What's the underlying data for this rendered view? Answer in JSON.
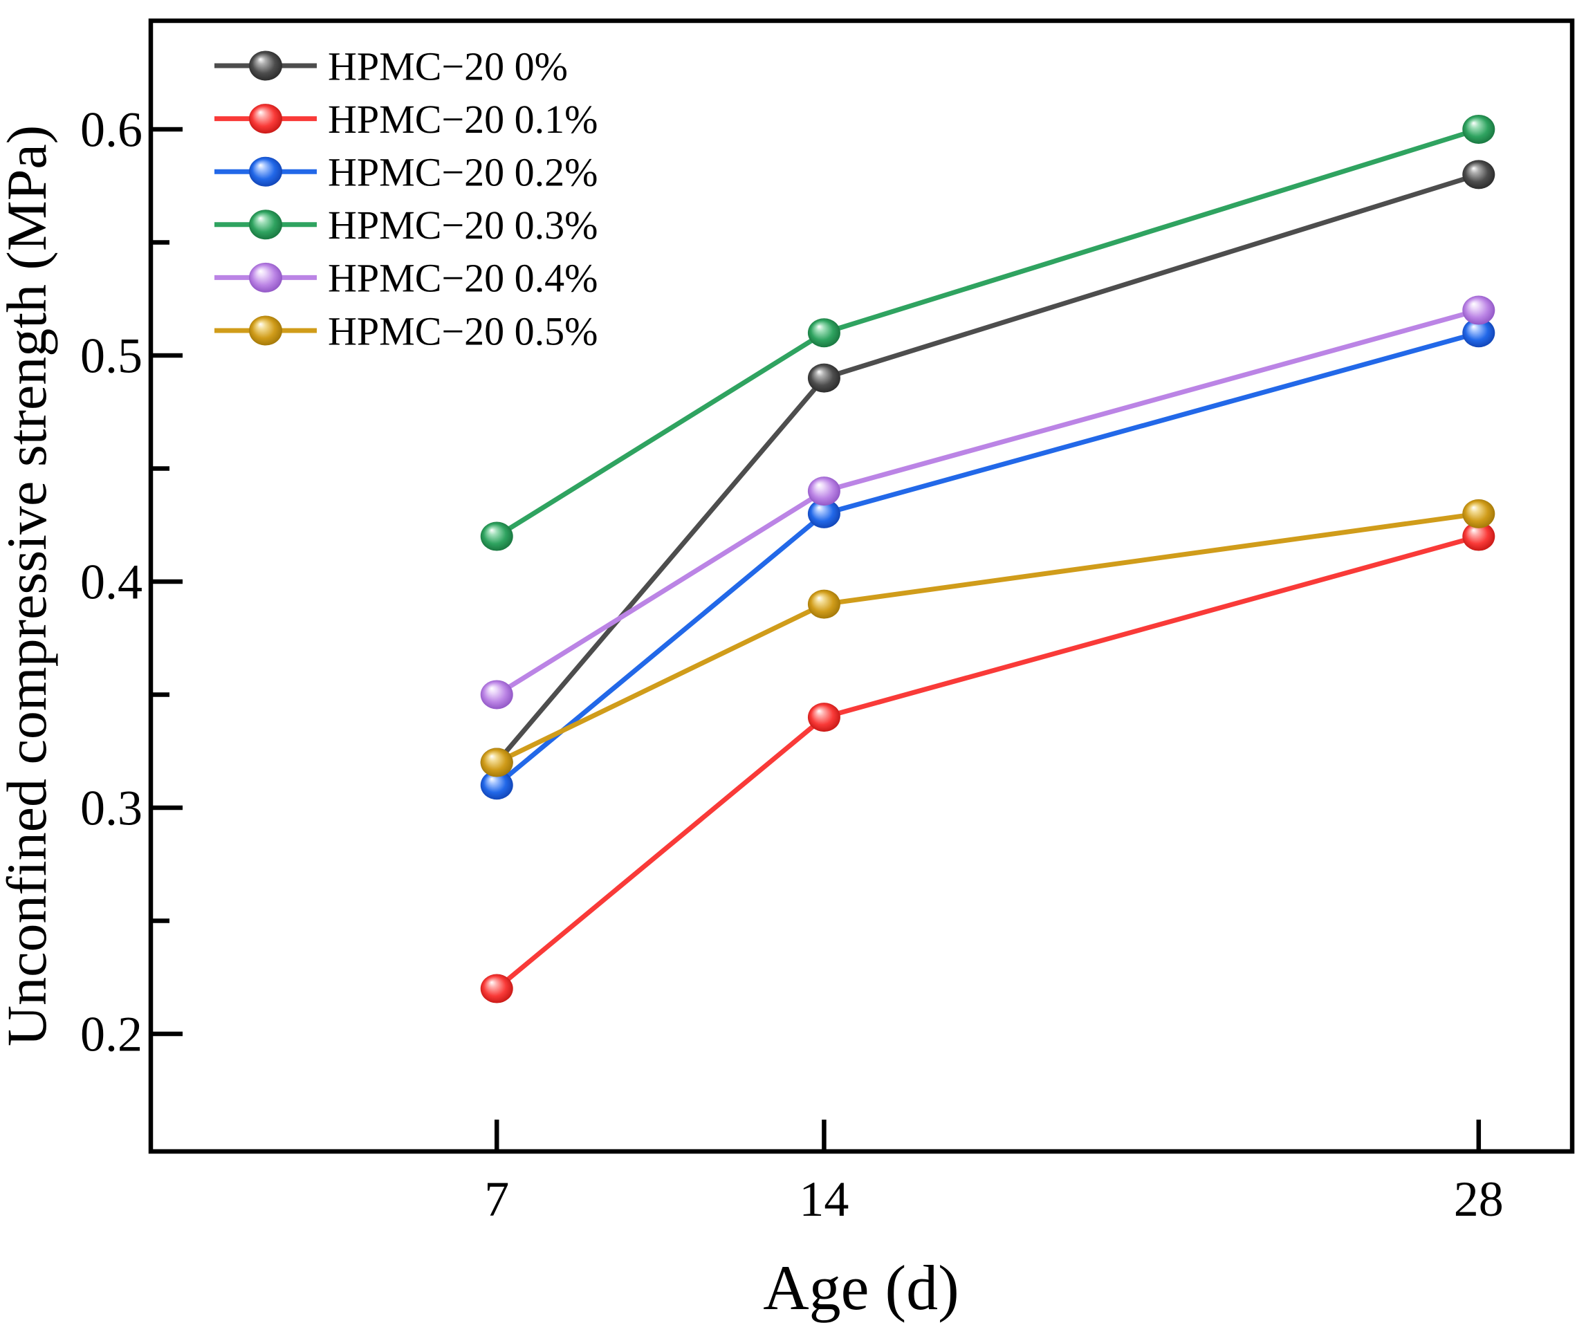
{
  "chart_data": {
    "type": "line",
    "title": "",
    "xlabel": "Age (d)",
    "ylabel": "Unconfined compressive strength (MPa)",
    "x": [
      7,
      14,
      28
    ],
    "x_tick_labels": [
      "7",
      "14",
      "28"
    ],
    "xlim": [
      -0.4,
      30
    ],
    "ylim": [
      0.148,
      0.648
    ],
    "y_major_ticks": [
      0.2,
      0.3,
      0.4,
      0.5,
      0.6
    ],
    "y_minor_ticks": [
      0.25,
      0.35,
      0.45,
      0.55
    ],
    "y_tick_labels": [
      "0.2",
      "0.3",
      "0.4",
      "0.5",
      "0.6"
    ],
    "grid": false,
    "legend_position": "inside-top-left",
    "frame_color": "#000000",
    "series": [
      {
        "name": "HPMC−20 0%",
        "values": [
          0.32,
          0.49,
          0.58
        ],
        "color": "#4d4d4d",
        "color_dark": "#262626",
        "color_light": "#b0b0b0"
      },
      {
        "name": "HPMC−20 0.1%",
        "values": [
          0.22,
          0.34,
          0.42
        ],
        "color": "#f93a38",
        "color_dark": "#c01310",
        "color_light": "#ffb0ae"
      },
      {
        "name": "HPMC−20 0.2%",
        "values": [
          0.31,
          0.43,
          0.51
        ],
        "color": "#2268e8",
        "color_dark": "#0f3fae",
        "color_light": "#a6c5ff"
      },
      {
        "name": "HPMC−20 0.3%",
        "values": [
          0.42,
          0.51,
          0.6
        ],
        "color": "#2fa360",
        "color_dark": "#156f3a",
        "color_light": "#a2e0bb"
      },
      {
        "name": "HPMC−20 0.4%",
        "values": [
          0.35,
          0.44,
          0.52
        ],
        "color": "#bb84e5",
        "color_dark": "#8a4fc0",
        "color_light": "#ecd8fa"
      },
      {
        "name": "HPMC−20 0.5%",
        "values": [
          0.32,
          0.39,
          0.43
        ],
        "color": "#d09c1a",
        "color_dark": "#9c7205",
        "color_light": "#f3dc93"
      }
    ]
  }
}
